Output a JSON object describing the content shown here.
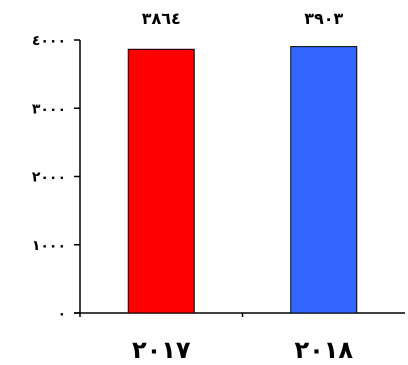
{
  "chart_data": {
    "type": "bar",
    "categories": [
      "٢٠١٧",
      "٢٠١٨"
    ],
    "values": [
      3864,
      3903
    ],
    "value_labels": [
      "٣٨٦٤",
      "٣٩٠٣"
    ],
    "bar_colors": [
      "#ff0000",
      "#3366ff"
    ],
    "ylim": [
      0,
      4000
    ],
    "yticks": [
      0,
      1000,
      2000,
      3000,
      4000
    ],
    "ytick_labels": [
      "٠",
      "١٠٠٠",
      "٢٠٠٠",
      "٣٠٠٠",
      "٤٠٠٠"
    ],
    "grid": false,
    "legend": "none"
  }
}
